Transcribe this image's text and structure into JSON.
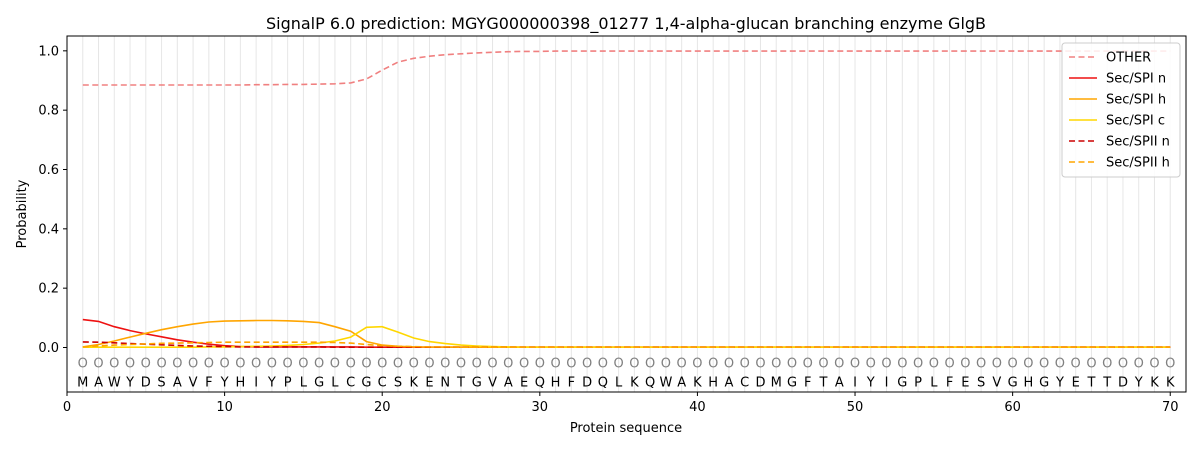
{
  "chart_data": {
    "type": "line",
    "title": "SignalP 6.0 prediction: MGYG000000398_01277 1,4-alpha-glucan branching enzyme GlgB",
    "xlabel": "Protein sequence",
    "ylabel": "Probability",
    "xlim": [
      0,
      71
    ],
    "ylim": [
      -0.15,
      1.05
    ],
    "xticks": [
      0,
      10,
      20,
      30,
      40,
      50,
      60,
      70
    ],
    "yticks": [
      0.0,
      0.2,
      0.4,
      0.6,
      0.8,
      1.0
    ],
    "ytick_labels": [
      "0.0",
      "0.2",
      "0.4",
      "0.6",
      "0.8",
      "1.0"
    ],
    "grid": "vertical lines at each residue",
    "legend_position": "top-right",
    "sequence": [
      "M",
      "A",
      "W",
      "Y",
      "D",
      "S",
      "A",
      "V",
      "F",
      "Y",
      "H",
      "I",
      "Y",
      "P",
      "L",
      "G",
      "L",
      "C",
      "G",
      "C",
      "S",
      "K",
      "E",
      "N",
      "T",
      "G",
      "V",
      "A",
      "E",
      "Q",
      "H",
      "F",
      "D",
      "Q",
      "L",
      "K",
      "Q",
      "W",
      "A",
      "K",
      "H",
      "A",
      "C",
      "D",
      "M",
      "G",
      "F",
      "T",
      "A",
      "I",
      "Y",
      "I",
      "G",
      "P",
      "L",
      "F",
      "E",
      "S",
      "V",
      "G",
      "H",
      "G",
      "Y",
      "E",
      "T",
      "T",
      "D",
      "Y",
      "K",
      "K"
    ],
    "position_marker": "O",
    "series": [
      {
        "name": "OTHER",
        "color": "#f08080",
        "dash": "dashed",
        "values": [
          0.885,
          0.885,
          0.885,
          0.885,
          0.885,
          0.885,
          0.885,
          0.885,
          0.885,
          0.885,
          0.885,
          0.886,
          0.886,
          0.887,
          0.887,
          0.888,
          0.889,
          0.892,
          0.905,
          0.935,
          0.962,
          0.975,
          0.982,
          0.987,
          0.99,
          0.993,
          0.995,
          0.997,
          0.998,
          0.998,
          0.999,
          0.999,
          0.999,
          0.999,
          0.999,
          0.999,
          0.999,
          0.999,
          0.999,
          0.999,
          0.999,
          0.999,
          0.999,
          0.999,
          0.999,
          0.999,
          0.999,
          0.999,
          0.999,
          0.999,
          0.999,
          0.999,
          0.999,
          0.999,
          0.999,
          0.999,
          0.999,
          0.999,
          0.999,
          0.999,
          0.999,
          0.999,
          0.999,
          0.999,
          0.999,
          0.999,
          0.999,
          0.999,
          0.999,
          0.999
        ]
      },
      {
        "name": "Sec/SPI n",
        "color": "#ee1111",
        "dash": "solid",
        "values": [
          0.094,
          0.088,
          0.07,
          0.057,
          0.046,
          0.036,
          0.026,
          0.018,
          0.011,
          0.006,
          0.003,
          0.002,
          0.002,
          0.002,
          0.002,
          0.002,
          0.002,
          0.002,
          0.001,
          0.001,
          0.001,
          0.001,
          0.001,
          0.001,
          0.001,
          0.001,
          0.001,
          0.001,
          0.001,
          0.001,
          0.001,
          0.001,
          0.001,
          0.001,
          0.001,
          0.001,
          0.001,
          0.001,
          0.001,
          0.001,
          0.001,
          0.001,
          0.001,
          0.001,
          0.001,
          0.001,
          0.001,
          0.001,
          0.001,
          0.001,
          0.001,
          0.001,
          0.001,
          0.001,
          0.001,
          0.001,
          0.001,
          0.001,
          0.001,
          0.001,
          0.001,
          0.001,
          0.001,
          0.001,
          0.001,
          0.001,
          0.001,
          0.001,
          0.001,
          0.001
        ]
      },
      {
        "name": "Sec/SPI h",
        "color": "#ffa500",
        "dash": "solid",
        "values": [
          0.002,
          0.01,
          0.022,
          0.035,
          0.048,
          0.06,
          0.07,
          0.079,
          0.086,
          0.089,
          0.09,
          0.091,
          0.091,
          0.09,
          0.088,
          0.084,
          0.07,
          0.055,
          0.02,
          0.008,
          0.004,
          0.002,
          0.001,
          0.001,
          0.001,
          0.001,
          0.001,
          0.001,
          0.001,
          0.001,
          0.001,
          0.001,
          0.001,
          0.001,
          0.001,
          0.001,
          0.001,
          0.001,
          0.001,
          0.001,
          0.001,
          0.001,
          0.001,
          0.001,
          0.001,
          0.001,
          0.001,
          0.001,
          0.001,
          0.001,
          0.001,
          0.001,
          0.001,
          0.001,
          0.001,
          0.001,
          0.001,
          0.001,
          0.001,
          0.001,
          0.001,
          0.001,
          0.001,
          0.001,
          0.001,
          0.001,
          0.001,
          0.001,
          0.001,
          0.001
        ]
      },
      {
        "name": "Sec/SPI c",
        "color": "#ffd700",
        "dash": "solid",
        "values": [
          0.001,
          0.001,
          0.001,
          0.001,
          0.001,
          0.001,
          0.001,
          0.001,
          0.002,
          0.002,
          0.003,
          0.004,
          0.005,
          0.007,
          0.01,
          0.015,
          0.022,
          0.035,
          0.068,
          0.07,
          0.052,
          0.032,
          0.02,
          0.013,
          0.008,
          0.005,
          0.003,
          0.002,
          0.001,
          0.001,
          0.001,
          0.001,
          0.001,
          0.001,
          0.001,
          0.001,
          0.001,
          0.001,
          0.001,
          0.001,
          0.001,
          0.001,
          0.001,
          0.001,
          0.001,
          0.001,
          0.001,
          0.001,
          0.001,
          0.001,
          0.001,
          0.001,
          0.001,
          0.001,
          0.001,
          0.001,
          0.001,
          0.001,
          0.001,
          0.001,
          0.001,
          0.001,
          0.001,
          0.001,
          0.001,
          0.001,
          0.001,
          0.001,
          0.001,
          0.001
        ]
      },
      {
        "name": "Sec/SPII n",
        "color": "#cc0000",
        "dash": "dashed",
        "values": [
          0.019,
          0.018,
          0.016,
          0.013,
          0.011,
          0.009,
          0.007,
          0.005,
          0.004,
          0.003,
          0.002,
          0.002,
          0.002,
          0.002,
          0.002,
          0.002,
          0.001,
          0.001,
          0.001,
          0.001,
          0.001,
          0.001,
          0.001,
          0.001,
          0.001,
          0.001,
          0.001,
          0.001,
          0.001,
          0.001,
          0.001,
          0.001,
          0.001,
          0.001,
          0.001,
          0.001,
          0.001,
          0.001,
          0.001,
          0.001,
          0.001,
          0.001,
          0.001,
          0.001,
          0.001,
          0.001,
          0.001,
          0.001,
          0.001,
          0.001,
          0.001,
          0.001,
          0.001,
          0.001,
          0.001,
          0.001,
          0.001,
          0.001,
          0.001,
          0.001,
          0.001,
          0.001,
          0.001,
          0.001,
          0.001,
          0.001,
          0.001,
          0.001,
          0.001,
          0.001
        ]
      },
      {
        "name": "Sec/SPII h",
        "color": "#ffa500",
        "dash": "dashed",
        "values": [
          0.002,
          0.005,
          0.008,
          0.01,
          0.012,
          0.014,
          0.015,
          0.016,
          0.017,
          0.018,
          0.018,
          0.018,
          0.018,
          0.018,
          0.018,
          0.018,
          0.017,
          0.015,
          0.01,
          0.006,
          0.004,
          0.003,
          0.002,
          0.002,
          0.001,
          0.001,
          0.001,
          0.001,
          0.001,
          0.001,
          0.001,
          0.001,
          0.001,
          0.001,
          0.001,
          0.001,
          0.001,
          0.001,
          0.001,
          0.001,
          0.001,
          0.001,
          0.001,
          0.001,
          0.001,
          0.001,
          0.001,
          0.001,
          0.001,
          0.001,
          0.001,
          0.001,
          0.001,
          0.001,
          0.001,
          0.001,
          0.001,
          0.001,
          0.001,
          0.001,
          0.001,
          0.001,
          0.001,
          0.001,
          0.001,
          0.001,
          0.001,
          0.001,
          0.001,
          0.001
        ]
      }
    ]
  }
}
